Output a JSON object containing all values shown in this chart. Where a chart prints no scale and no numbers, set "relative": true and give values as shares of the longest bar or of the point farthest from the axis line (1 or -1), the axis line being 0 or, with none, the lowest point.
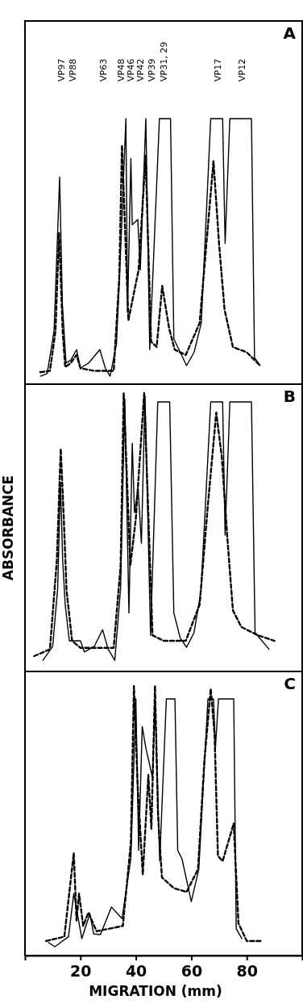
{
  "chart_data": [
    {
      "type": "line",
      "title": "A",
      "relative": true,
      "xlim": [
        0,
        100
      ],
      "tick_labels": false,
      "annotations": [
        "VP97",
        "VP88",
        "VP63",
        "VP48",
        "VP46",
        "VP42",
        "VP39",
        "VP31, 29",
        "VP17",
        "VP12"
      ],
      "series": [
        {
          "color": "#000000",
          "line_style": "solid",
          "x": [
            5.6,
            8,
            10.5,
            12.5,
            13.5,
            14.8,
            16.5,
            18.6,
            20,
            23,
            27,
            29,
            30.7,
            33,
            34.5,
            36.4,
            37,
            38.2,
            38.7,
            40.7,
            41.6,
            43.6,
            45,
            48.5,
            52.5,
            53.7,
            56,
            58.3,
            61,
            63.6,
            67,
            71.3,
            72.2,
            73.9,
            81.7,
            82.8,
            84.8
          ],
          "values": [
            0.03,
            0.04,
            0.2,
            0.78,
            0.3,
            0.08,
            0.09,
            0.13,
            0.06,
            0.08,
            0.13,
            0.06,
            0.03,
            0.15,
            0.5,
            1,
            0.27,
            0.85,
            0.6,
            0.62,
            0.43,
            1,
            0.13,
            1,
            1,
            0.17,
            0.12,
            0.07,
            0.12,
            0.23,
            1,
            1,
            0.53,
            1,
            1,
            0.1,
            0.07
          ]
        },
        {
          "color": "#000000",
          "line_style": "dashed",
          "x": [
            5.5,
            9,
            11,
            12.3,
            13.6,
            14.5,
            16.5,
            18.6,
            20,
            25,
            32,
            34,
            35,
            37.3,
            40,
            41,
            43.5,
            45.5,
            47.5,
            49.5,
            52,
            54,
            58,
            63,
            68,
            70,
            72,
            75,
            80,
            84.8
          ],
          "values": [
            0.045,
            0.05,
            0.2,
            0.57,
            0.2,
            0.064,
            0.08,
            0.11,
            0.06,
            0.05,
            0.05,
            0.4,
            0.9,
            0.24,
            0.38,
            0.43,
            0.86,
            0.16,
            0.14,
            0.37,
            0.21,
            0.13,
            0.11,
            0.23,
            0.84,
            0.53,
            0.28,
            0.14,
            0.12,
            0.07
          ]
        }
      ]
    },
    {
      "type": "line",
      "title": "B",
      "ylabel": "ABSORBANCE",
      "relative": true,
      "xlim": [
        0,
        100
      ],
      "tick_labels": false,
      "series": [
        {
          "color": "#000000",
          "line_style": "solid",
          "x": [
            6.5,
            10,
            11.8,
            12.8,
            13.6,
            14.5,
            16,
            20,
            21.4,
            25,
            28,
            30,
            32.4,
            34.5,
            36,
            37.5,
            38.7,
            39.5,
            40.8,
            42,
            43.3,
            45.3,
            47.9,
            52.2,
            53.7,
            56,
            58.3,
            61,
            63.5,
            67,
            71.3,
            72.2,
            73.9,
            81.7,
            83,
            88
          ],
          "values": [
            0.04,
            0.09,
            0.3,
            0.68,
            0.4,
            0.24,
            0.11,
            0.11,
            0.07,
            0.09,
            0.15,
            0.08,
            0.04,
            0.3,
            0.98,
            0.21,
            0.82,
            0.57,
            0.66,
            0.46,
            0.99,
            0.13,
            0.968,
            0.968,
            0.21,
            0.12,
            0.087,
            0.14,
            0.29,
            0.968,
            0.968,
            0.49,
            0.968,
            0.968,
            0.14,
            0.08
          ]
        },
        {
          "color": "#000000",
          "line_style": "dashed",
          "x": [
            3.3,
            9,
            11.5,
            12.9,
            14,
            15,
            17,
            20,
            32,
            34.5,
            35.6,
            38,
            40,
            43,
            46,
            50,
            58,
            63,
            66,
            69,
            71,
            73,
            75,
            78,
            84,
            90
          ],
          "values": [
            0.055,
            0.08,
            0.4,
            0.8,
            0.55,
            0.29,
            0.11,
            0.085,
            0.085,
            0.38,
            1,
            0.38,
            0.55,
            1,
            0.13,
            0.11,
            0.11,
            0.24,
            0.6,
            0.93,
            0.77,
            0.48,
            0.22,
            0.16,
            0.13,
            0.11
          ]
        }
      ]
    },
    {
      "type": "line",
      "title": "C",
      "xlabel": "MIGRATION (mm)",
      "relative": true,
      "xlim": [
        0,
        100
      ],
      "xticks": [
        20,
        40,
        60,
        80
      ],
      "tick_labels": "x",
      "series": [
        {
          "color": "#000000",
          "line_style": "solid",
          "x": [
            8.5,
            10.8,
            15.7,
            17.6,
            20.5,
            23.4,
            24.8,
            27.2,
            31.2,
            35,
            38.2,
            40,
            41,
            42.3,
            43.6,
            46,
            46.9,
            48.6,
            51,
            54.1,
            55.1,
            56.6,
            60,
            62.7,
            66,
            68,
            68.7,
            69.8,
            75.3,
            76.2,
            78.2
          ],
          "values": [
            0.048,
            0.033,
            0.07,
            0.23,
            0.063,
            0.155,
            0.08,
            0.078,
            0.18,
            0.137,
            0.36,
            0.952,
            0.39,
            0.85,
            0.77,
            0.66,
            0.952,
            0.35,
            0.952,
            0.952,
            0.39,
            0.36,
            0.2,
            0.32,
            0.952,
            0.952,
            0.77,
            0.952,
            0.952,
            0.1,
            0.063
          ]
        },
        {
          "color": "#000000",
          "line_style": "dashed",
          "x": [
            7.6,
            14.2,
            17.6,
            18.6,
            19.5,
            21,
            22.9,
            25.8,
            35.3,
            38.2,
            39.3,
            40.7,
            42.5,
            44.5,
            45.6,
            46.9,
            48,
            49.4,
            53.7,
            58.3,
            62.4,
            64.7,
            67,
            68.4,
            69.6,
            71.3,
            73.3,
            75.3,
            77,
            80,
            85.4
          ],
          "values": [
            0.054,
            0.07,
            0.38,
            0.13,
            0.23,
            0.11,
            0.16,
            0.09,
            0.11,
            0.42,
            1,
            0.62,
            0.3,
            0.67,
            0.47,
            1,
            0.52,
            0.29,
            0.25,
            0.236,
            0.32,
            0.72,
            0.99,
            0.82,
            0.37,
            0.35,
            0.42,
            0.49,
            0.12,
            0.054,
            0.054
          ]
        }
      ]
    }
  ]
}
